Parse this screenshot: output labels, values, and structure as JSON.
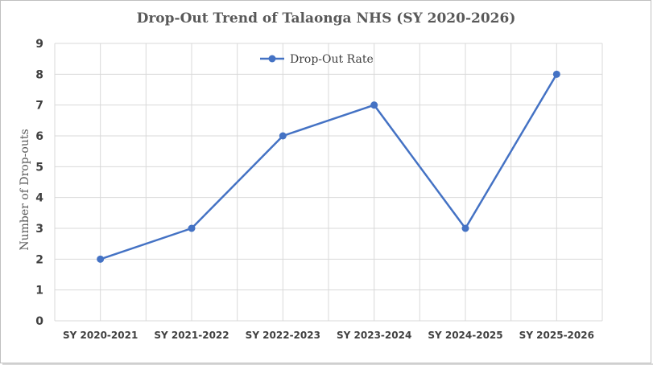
{
  "chart_data": {
    "type": "line",
    "title": "Drop-Out Trend of Talaonga NHS (SY 2020-2026)",
    "xlabel": "",
    "ylabel": "Number of Drop-outs",
    "categories": [
      "SY 2020-2021",
      "SY 2021-2022",
      "SY 2022-2023",
      "SY 2023-2024",
      "SY 2024-2025",
      "SY 2025-2026"
    ],
    "series": [
      {
        "name": "Drop-Out Rate",
        "values": [
          2,
          3,
          6,
          7,
          3,
          8
        ],
        "color": "#4472c4"
      }
    ],
    "ylim": [
      0,
      9
    ],
    "yticks": [
      "0",
      "1",
      "2",
      "3",
      "4",
      "5",
      "6",
      "7",
      "8",
      "9"
    ],
    "grid": true,
    "legend": "top-center"
  }
}
